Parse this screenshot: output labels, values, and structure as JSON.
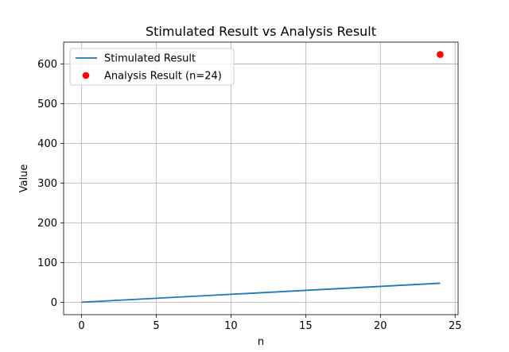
{
  "chart_data": {
    "type": "line",
    "title": "Stimulated Result vs Analysis Result",
    "xlabel": "n",
    "ylabel": "Value",
    "xlim": [
      -1.2,
      25.2
    ],
    "ylim": [
      -31.2,
      655.2
    ],
    "xticks": [
      0,
      5,
      10,
      15,
      20,
      25
    ],
    "yticks": [
      0,
      100,
      200,
      300,
      400,
      500,
      600
    ],
    "grid": true,
    "legend_position": "top-left",
    "series": [
      {
        "name": "Stimulated Result",
        "kind": "line",
        "color": "#1f77b4",
        "x": [
          0,
          1,
          2,
          3,
          4,
          5,
          6,
          7,
          8,
          9,
          10,
          11,
          12,
          13,
          14,
          15,
          16,
          17,
          18,
          19,
          20,
          21,
          22,
          23,
          24
        ],
        "y": [
          0,
          2,
          4,
          6,
          8,
          10,
          12,
          14,
          16,
          18,
          20,
          22,
          24,
          26,
          28,
          30,
          32,
          34,
          36,
          38,
          40,
          42,
          44,
          46,
          48
        ]
      },
      {
        "name": "Analysis Result (n=24)",
        "kind": "scatter",
        "color": "#ff0000",
        "x": [
          24
        ],
        "y": [
          624
        ]
      }
    ]
  }
}
